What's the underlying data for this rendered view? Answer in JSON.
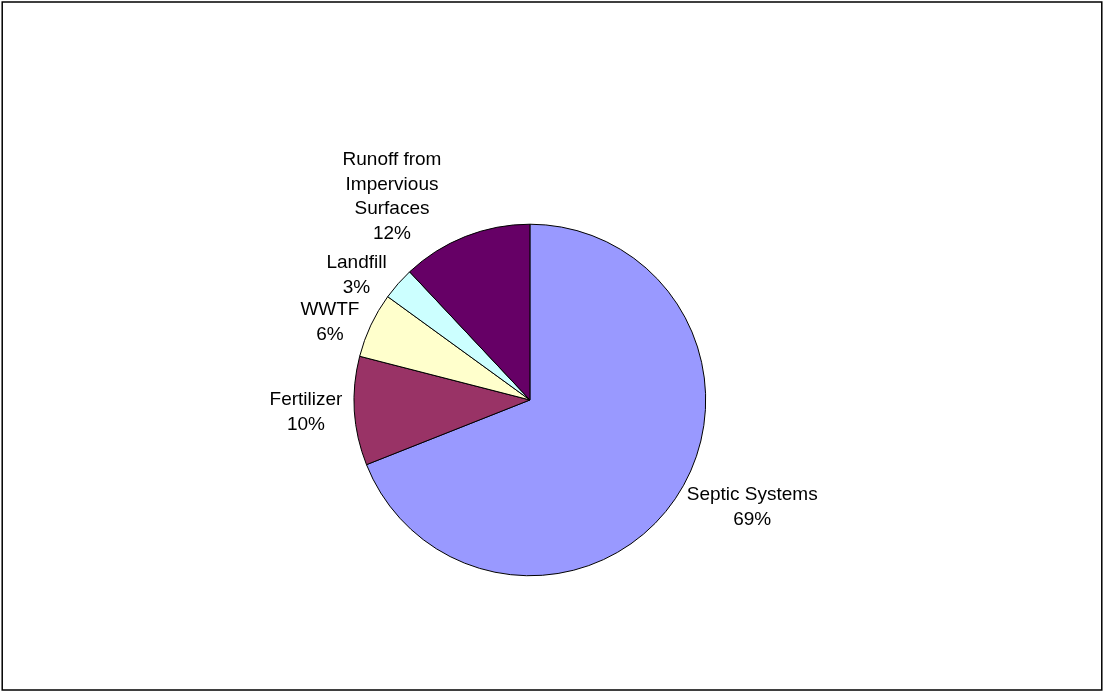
{
  "chart_data": {
    "type": "pie",
    "categories": [
      "Septic Systems",
      "Fertilizer",
      "WWTF",
      "Landfill",
      "Runoff from Impervious Surfaces"
    ],
    "values": [
      69,
      10,
      6,
      3,
      12
    ],
    "colors": [
      "#9999ff",
      "#993366",
      "#ffffcc",
      "#ccffff",
      "#660066"
    ],
    "value_labels": [
      "69%",
      "10%",
      "6%",
      "3%",
      "12%"
    ],
    "legend": false
  }
}
